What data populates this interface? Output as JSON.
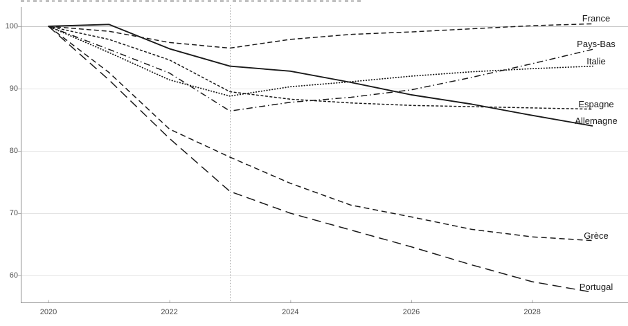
{
  "chart_data": {
    "type": "line",
    "description": "Indexed line chart (base 100 = 2020) comparing seven European countries from 2020 to 2029, with a dotted vertical divider at 2023 separating observed data from projections.",
    "x": [
      2020,
      2021,
      2022,
      2023,
      2024,
      2025,
      2026,
      2027,
      2028,
      2029
    ],
    "x_ticks": [
      2020,
      2022,
      2024,
      2026,
      2028
    ],
    "y_ticks": [
      60,
      70,
      80,
      90,
      100
    ],
    "ylim": [
      55.7,
      103.1
    ],
    "xlim": [
      2019.5,
      2029.6
    ],
    "baseline_value": 100,
    "forecast_divider_x": 2023,
    "grid": "horizontal",
    "legend_position": "right-end-labels",
    "series": [
      {
        "name": "France",
        "style": "dash",
        "values": [
          100,
          99.2,
          97.4,
          96.5,
          97.9,
          98.7,
          99.1,
          99.6,
          100.1,
          100.4
        ]
      },
      {
        "name": "Pays-Bas",
        "style": "dashdot",
        "values": [
          100,
          96.3,
          92.5,
          86.4,
          87.8,
          88.6,
          89.8,
          91.8,
          94.0,
          96.3
        ]
      },
      {
        "name": "Italie",
        "style": "dot",
        "values": [
          100,
          95.8,
          91.4,
          88.8,
          90.3,
          91.1,
          92.0,
          92.7,
          93.2,
          93.6
        ]
      },
      {
        "name": "Espagne",
        "style": "shortdash",
        "values": [
          100,
          97.9,
          94.6,
          89.5,
          88.3,
          87.7,
          87.3,
          87.1,
          86.9,
          86.7
        ]
      },
      {
        "name": "Allemagne",
        "style": "solid",
        "values": [
          100,
          100.3,
          96.4,
          93.6,
          92.8,
          91.0,
          89.0,
          87.5,
          85.7,
          84.0
        ]
      },
      {
        "name": "Grèce",
        "style": "mediumdash",
        "values": [
          100,
          92.6,
          83.5,
          79.0,
          74.8,
          71.3,
          69.4,
          67.4,
          66.2,
          65.6
        ]
      },
      {
        "name": "Portugal",
        "style": "longdash",
        "values": [
          100,
          91.4,
          82.0,
          73.5,
          70.0,
          67.3,
          64.6,
          61.7,
          59.0,
          57.3
        ]
      }
    ],
    "colors": {
      "line": "#1a1a1a",
      "grid": "#e4e4e4",
      "grid_baseline": "#c6c6c6",
      "axis": "#8a8a8a",
      "tick": "#b0b0b0",
      "tick_text": "#4d4d4d",
      "divider": "#9a9a9a",
      "background": "#ffffff"
    }
  }
}
